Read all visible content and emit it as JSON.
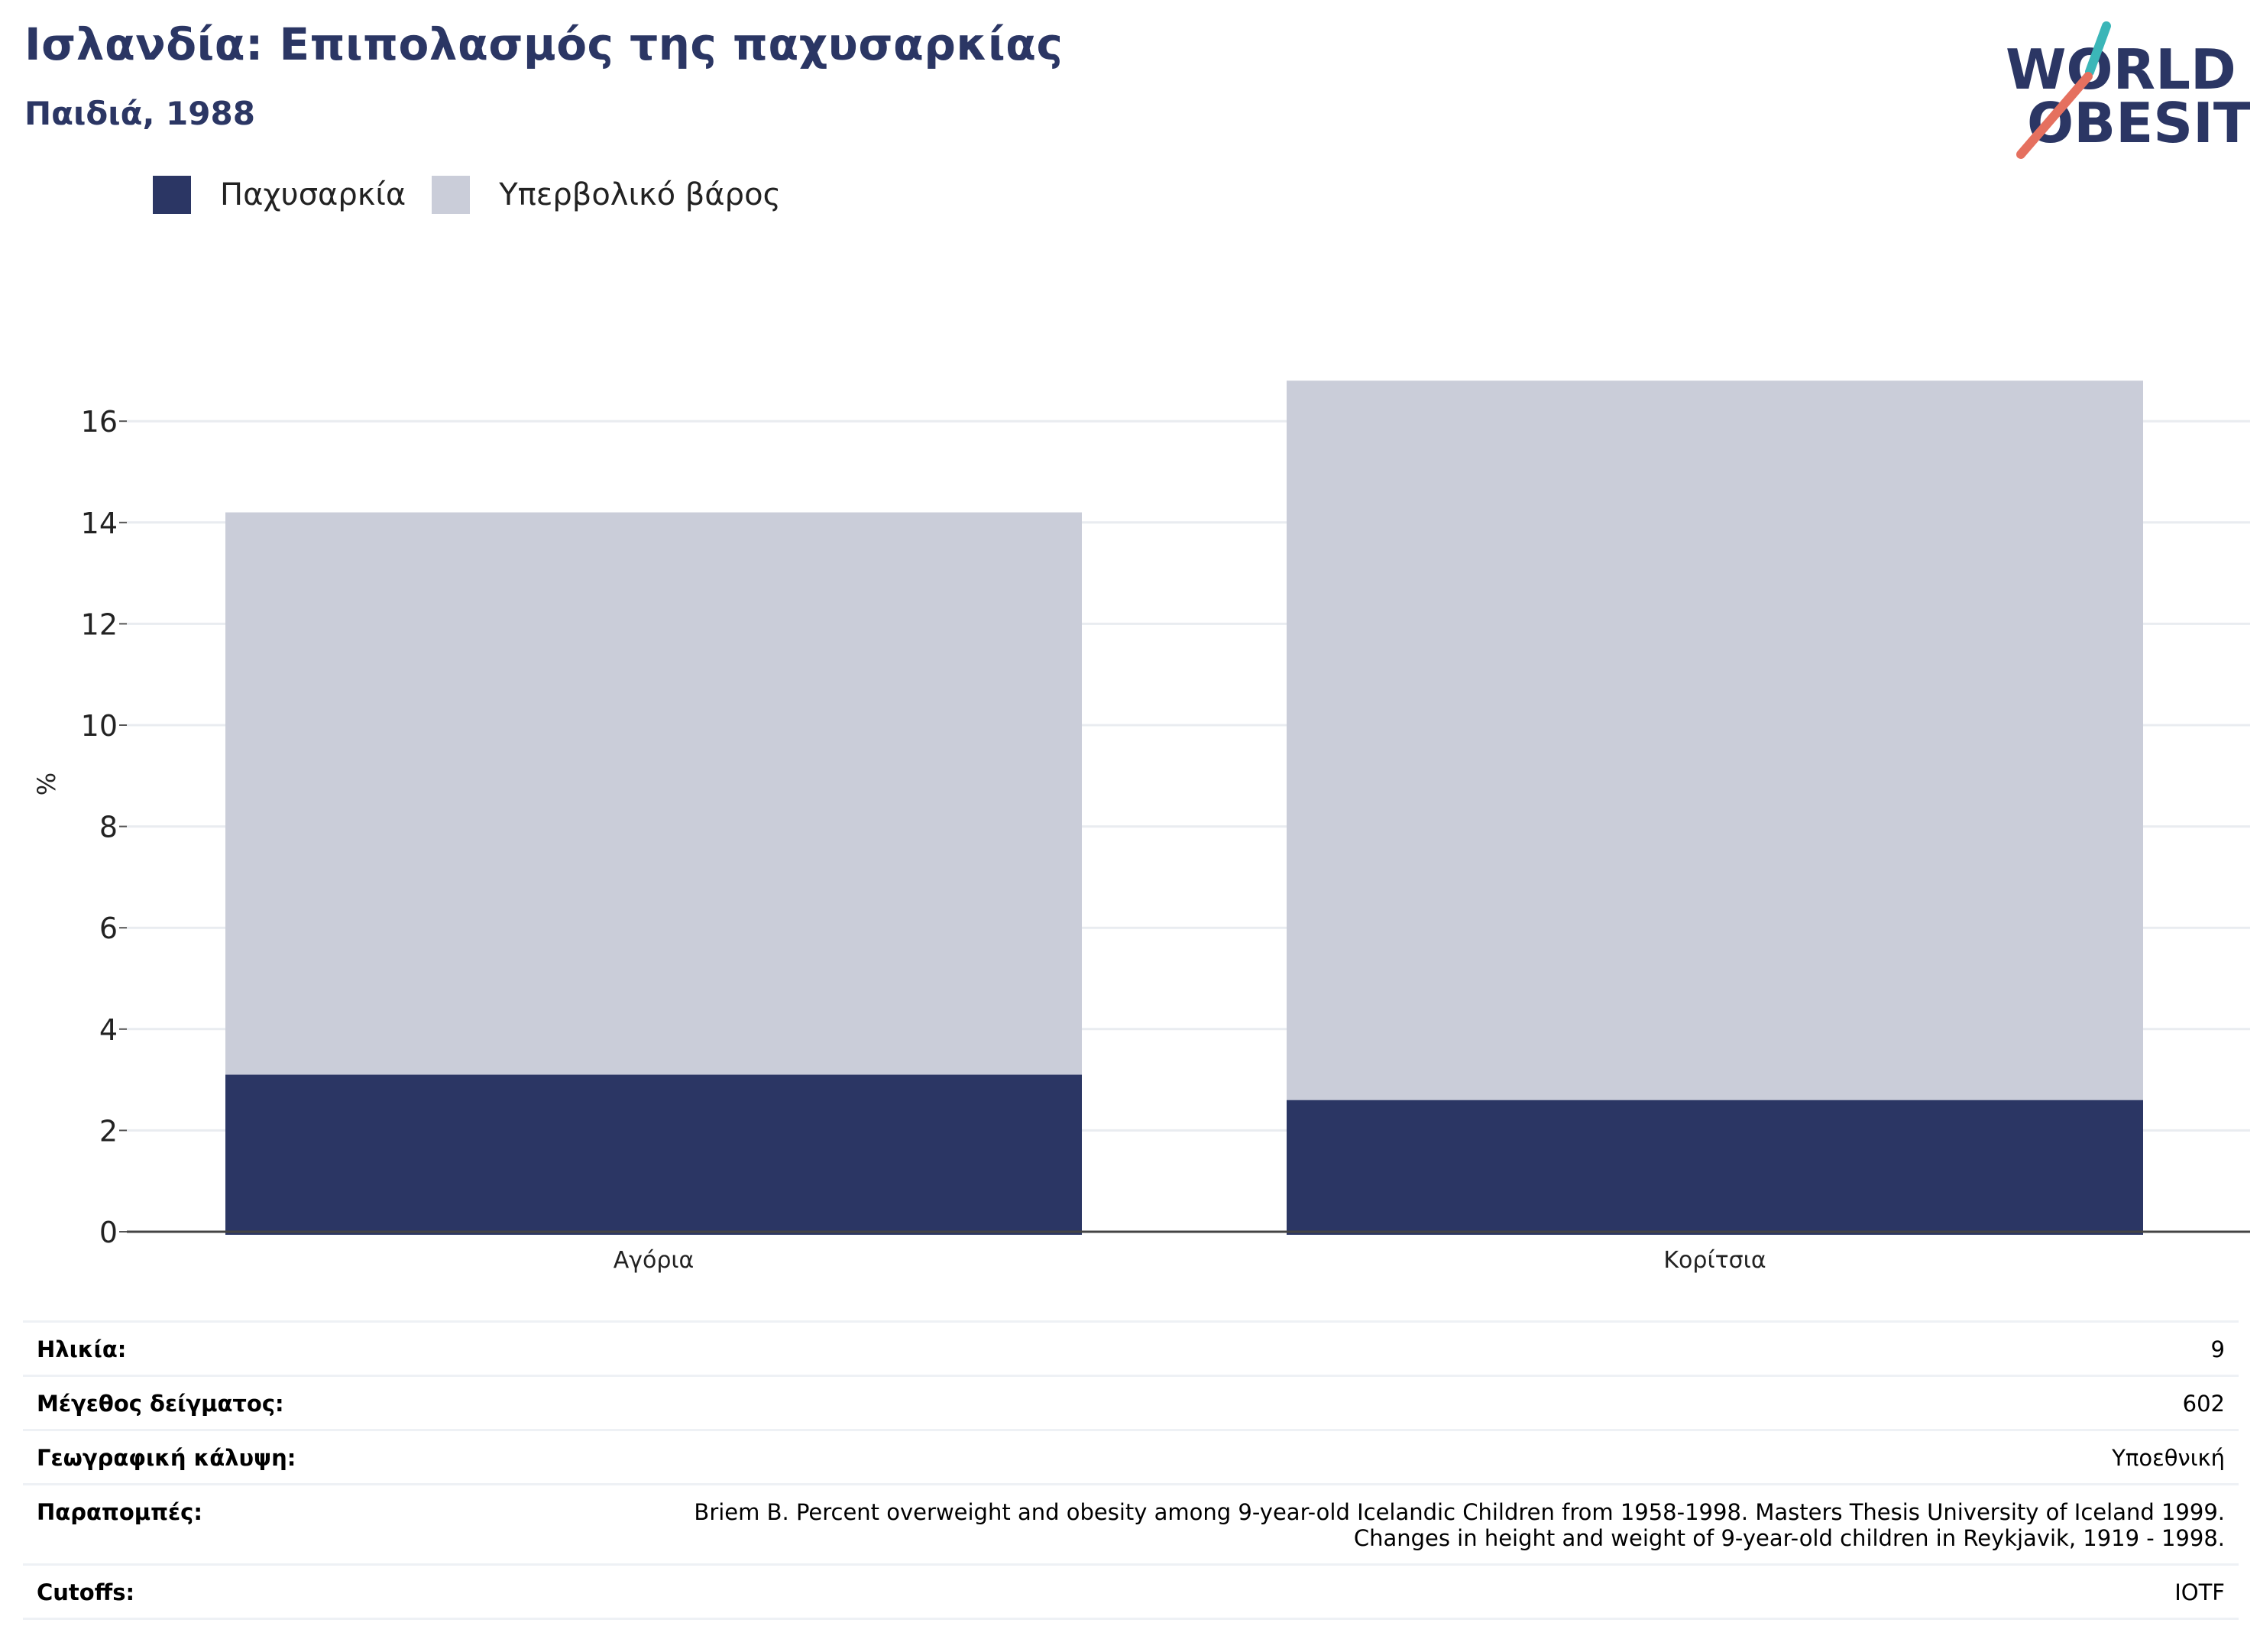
{
  "title": "Ισλανδία: Επιπολασμός της παχυσαρκίας",
  "subtitle": "Παιδιά, 1988",
  "logo": {
    "line1": "WORLD",
    "line2": "OBESITY"
  },
  "colors": {
    "obesity": "#2b3664",
    "overweight": "#cacdd9",
    "title": "#2b3664",
    "logo_teal": "#3bb6b8",
    "logo_coral": "#e5705f"
  },
  "chart_data": {
    "type": "bar",
    "stacked": true,
    "title": "Ισλανδία: Επιπολασμός της παχυσαρκίας",
    "subtitle": "Παιδιά, 1988",
    "categories": [
      "Αγόρια",
      "Κορίτσια"
    ],
    "series": [
      {
        "name": "Παχυσαρκία",
        "values": [
          3.1,
          2.6
        ]
      },
      {
        "name": "Υπερβολικό βάρος",
        "values": [
          11.1,
          14.2
        ]
      }
    ],
    "ylabel": "%",
    "ylim": [
      0,
      17
    ],
    "yticks": [
      0,
      2,
      4,
      6,
      8,
      10,
      12,
      14,
      16
    ],
    "grid": true,
    "legend_position": "top-left"
  },
  "info": [
    {
      "label": "Ηλικία:",
      "value": "9"
    },
    {
      "label": "Μέγεθος δείγματος:",
      "value": "602"
    },
    {
      "label": "Γεωγραφική κάλυψη:",
      "value": "Υποεθνική"
    },
    {
      "label": "Παραπομπές:",
      "value": "Briem B. Percent overweight and obesity among 9-year-old Icelandic Children from 1958-1998. Masters Thesis University of Iceland 1999.\nChanges in height and weight of 9-year-old children in Reykjavik, 1919 - 1998."
    },
    {
      "label": "Cutoffs:",
      "value": "IOTF"
    }
  ]
}
